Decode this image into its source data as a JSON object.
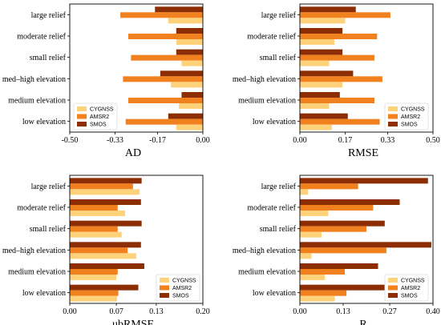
{
  "colors": {
    "CYGNSS": "#fdd27a",
    "AMSR2": "#f1801e",
    "SMOS": "#8c2d04"
  },
  "chart_data": [
    {
      "type": "bar",
      "orientation": "horizontal",
      "xlabel": "AD",
      "xlim": [
        -0.5,
        0.0
      ],
      "xticks": [
        "-0.50",
        "-0.33",
        "-0.17",
        "0.00"
      ],
      "xtick_values": [
        -0.5,
        -0.33,
        -0.17,
        0.0
      ],
      "categories": [
        "large relief",
        "moderate relief",
        "small relief",
        "med–high elevation",
        "medium elevation",
        "low elevation"
      ],
      "series": [
        {
          "name": "CYGNSS",
          "values": [
            -0.13,
            -0.1,
            -0.08,
            -0.12,
            -0.09,
            -0.1
          ]
        },
        {
          "name": "AMSR2",
          "values": [
            -0.31,
            -0.28,
            -0.27,
            -0.3,
            -0.28,
            -0.29
          ]
        },
        {
          "name": "SMOS",
          "values": [
            -0.18,
            -0.1,
            -0.1,
            -0.16,
            -0.08,
            -0.13
          ]
        }
      ],
      "legend": "bottom-left"
    },
    {
      "type": "bar",
      "orientation": "horizontal",
      "xlabel": "RMSE",
      "xlim": [
        0.0,
        0.5
      ],
      "xticks": [
        "0.00",
        "0.17",
        "0.33",
        "0.50"
      ],
      "xtick_values": [
        0.0,
        0.17,
        0.33,
        0.5
      ],
      "categories": [
        "large relief",
        "moderate relief",
        "small relief",
        "med–high elevation",
        "medium elevation",
        "low elevation"
      ],
      "series": [
        {
          "name": "CYGNSS",
          "values": [
            0.17,
            0.13,
            0.11,
            0.16,
            0.11,
            0.12
          ]
        },
        {
          "name": "AMSR2",
          "values": [
            0.34,
            0.29,
            0.28,
            0.31,
            0.28,
            0.3
          ]
        },
        {
          "name": "SMOS",
          "values": [
            0.21,
            0.16,
            0.16,
            0.2,
            0.15,
            0.18
          ]
        }
      ],
      "legend": "bottom-right"
    },
    {
      "type": "bar",
      "orientation": "horizontal",
      "xlabel": "ubRMSE",
      "xlim": [
        0.0,
        0.2
      ],
      "xticks": [
        "0.00",
        "0.07",
        "0.13",
        "0.20"
      ],
      "xtick_values": [
        0.0,
        0.07,
        0.13,
        0.2
      ],
      "categories": [
        "large relief",
        "moderate relief",
        "small relief",
        "med–high elevation",
        "medium elevation",
        "low elevation"
      ],
      "series": [
        {
          "name": "CYGNSS",
          "values": [
            0.105,
            0.083,
            0.078,
            0.1,
            0.07,
            0.071
          ]
        },
        {
          "name": "AMSR2",
          "values": [
            0.095,
            0.072,
            0.072,
            0.087,
            0.072,
            0.073
          ]
        },
        {
          "name": "SMOS",
          "values": [
            0.108,
            0.107,
            0.108,
            0.107,
            0.112,
            0.103
          ]
        }
      ],
      "legend": "bottom-right"
    },
    {
      "type": "bar",
      "orientation": "horizontal",
      "xlabel": "R",
      "xlim": [
        0.0,
        0.4
      ],
      "xticks": [
        "0.00",
        "0.13",
        "0.27",
        "0.40"
      ],
      "xtick_values": [
        0.0,
        0.13,
        0.27,
        0.4
      ],
      "categories": [
        "large relief",
        "moderate relief",
        "small relief",
        "med–high elevation",
        "medium elevation",
        "low elevation"
      ],
      "series": [
        {
          "name": "CYGNSS",
          "values": [
            0.025,
            0.085,
            0.065,
            0.035,
            0.075,
            0.105
          ]
        },
        {
          "name": "AMSR2",
          "values": [
            0.175,
            0.22,
            0.2,
            0.26,
            0.135,
            0.14
          ]
        },
        {
          "name": "SMOS",
          "values": [
            0.385,
            0.3,
            0.255,
            0.395,
            0.235,
            0.255
          ]
        }
      ],
      "legend": "bottom-right"
    }
  ]
}
